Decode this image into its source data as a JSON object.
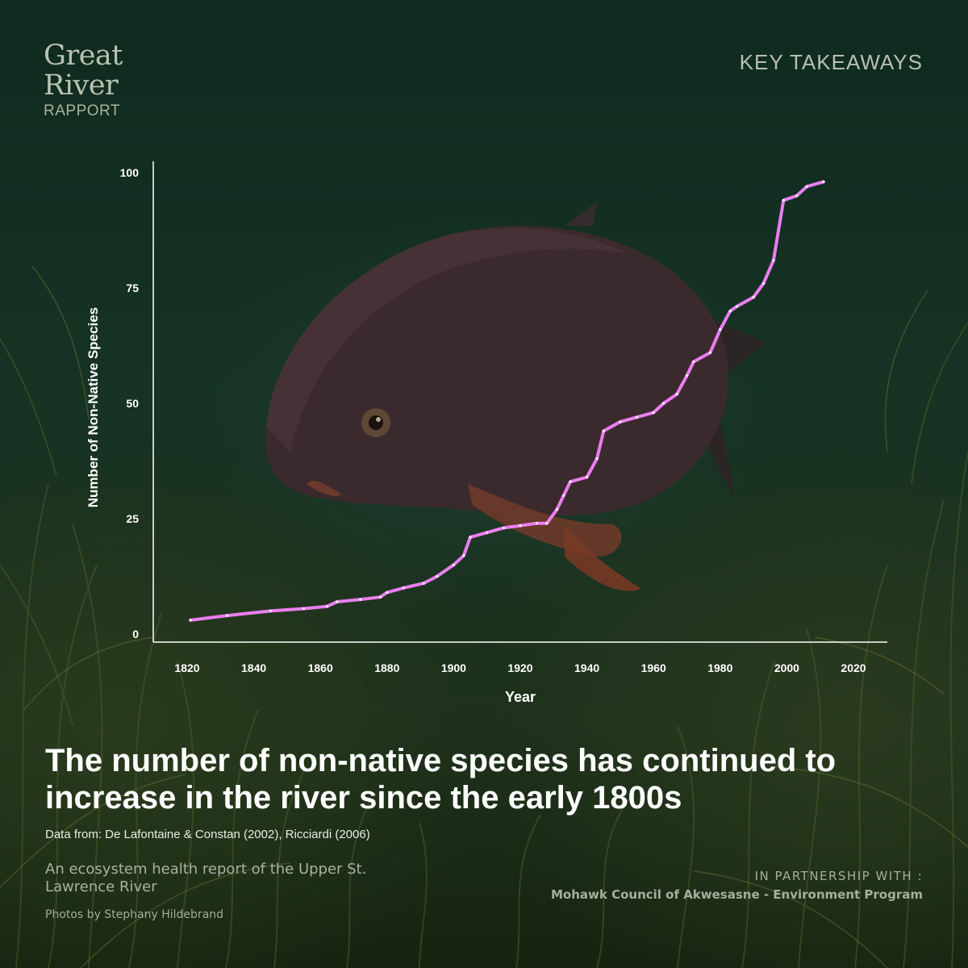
{
  "brand": {
    "line1": "Great",
    "line2": "River",
    "line3": "RAPPORT"
  },
  "header": {
    "key_takeaways": "KEY TAKEAWAYS"
  },
  "headline": "The number of non-native species has continued to increase in the river since the early 1800s",
  "source": "Data from: De Lafontaine & Constan (2002), Ricciardi (2006)",
  "subtitle": "An ecosystem health report of the Upper St. Lawrence River",
  "photo_credit": "Photos by Stephany Hildebrand",
  "partner": {
    "label": "IN PARTNERSHIP WITH :",
    "name": "Mohawk Council of Akwesasne - Environment Program"
  },
  "colors": {
    "line": "#ea7ef0",
    "axis": "#ffffff"
  },
  "chart_data": {
    "type": "line",
    "title": "",
    "xlabel": "Year",
    "ylabel": "Number of Non-Native Species",
    "xlim": [
      1810,
      2030
    ],
    "ylim": [
      0,
      100
    ],
    "xticks": [
      1820,
      1840,
      1860,
      1880,
      1900,
      1920,
      1940,
      1960,
      1980,
      2000,
      2020
    ],
    "yticks": [
      0,
      25,
      50,
      75,
      100
    ],
    "grid": false,
    "series": [
      {
        "name": "Non-native species",
        "x": [
          1821,
          1832,
          1845,
          1855,
          1862,
          1865,
          1872,
          1878,
          1880,
          1885,
          1891,
          1895,
          1900,
          1903,
          1905,
          1910,
          1915,
          1920,
          1925,
          1928,
          1931,
          1933,
          1935,
          1940,
          1943,
          1945,
          1950,
          1955,
          1960,
          1963,
          1967,
          1970,
          1972,
          1977,
          1980,
          1983,
          1985,
          1990,
          1993,
          1996,
          1999,
          2003,
          2006,
          2011
        ],
        "values": [
          3,
          4,
          5,
          5.5,
          6,
          7,
          7.5,
          8,
          9,
          10,
          11,
          12.5,
          15,
          17,
          21,
          22,
          23,
          23.5,
          24,
          24,
          27,
          30,
          33,
          34,
          38,
          44,
          46,
          47,
          48,
          50,
          52,
          56,
          59,
          61,
          66,
          70,
          71,
          73,
          76,
          81,
          94,
          95,
          97,
          98
        ]
      }
    ]
  }
}
